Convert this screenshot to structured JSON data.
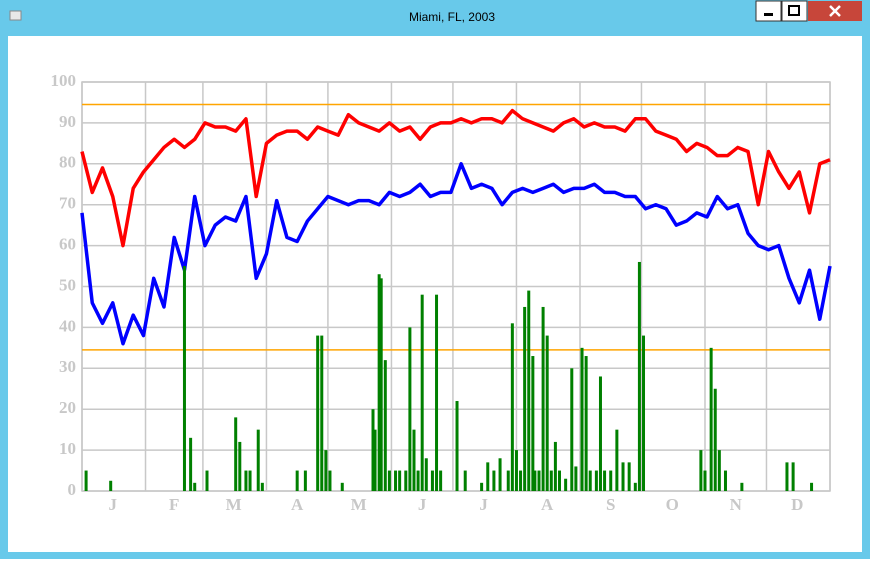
{
  "window": {
    "title": "Miami, FL, 2003"
  },
  "chart_data": {
    "type": "line",
    "xlim": [
      0,
      365
    ],
    "xgrid": [
      0,
      31,
      59,
      90,
      120,
      151,
      181,
      212,
      243,
      273,
      304,
      334,
      365
    ],
    "xticks": [
      {
        "value": 15,
        "label": "J"
      },
      {
        "value": 45,
        "label": "F"
      },
      {
        "value": 74,
        "label": "M"
      },
      {
        "value": 105,
        "label": "A"
      },
      {
        "value": 135,
        "label": "M"
      },
      {
        "value": 166,
        "label": "J"
      },
      {
        "value": 196,
        "label": "J"
      },
      {
        "value": 227,
        "label": "A"
      },
      {
        "value": 258,
        "label": "S"
      },
      {
        "value": 288,
        "label": "O"
      },
      {
        "value": 319,
        "label": "N"
      },
      {
        "value": 349,
        "label": "D"
      }
    ],
    "ylim": [
      0,
      100
    ],
    "yticks": [
      0,
      10,
      20,
      30,
      40,
      50,
      60,
      70,
      80,
      90,
      100
    ],
    "grid": true,
    "reference_lines": {
      "values": [
        94.5,
        34.5
      ],
      "color": "#ffa500"
    },
    "series": [
      {
        "kind": "line",
        "color": "#ff0000",
        "x": [
          0,
          5,
          10,
          15,
          20,
          25,
          30,
          35,
          40,
          45,
          50,
          55,
          60,
          65,
          70,
          75,
          80,
          85,
          90,
          95,
          100,
          105,
          110,
          115,
          120,
          125,
          130,
          135,
          140,
          145,
          150,
          155,
          160,
          165,
          170,
          175,
          180,
          185,
          190,
          195,
          200,
          205,
          210,
          215,
          220,
          225,
          230,
          235,
          240,
          245,
          250,
          255,
          260,
          265,
          270,
          275,
          280,
          285,
          290,
          295,
          300,
          305,
          310,
          315,
          320,
          325,
          330,
          335,
          340,
          345,
          350,
          355,
          360,
          365
        ],
        "values": [
          83,
          73,
          79,
          72,
          60,
          74,
          78,
          81,
          84,
          86,
          84,
          86,
          90,
          89,
          89,
          88,
          91,
          72,
          85,
          87,
          88,
          88,
          86,
          89,
          88,
          87,
          92,
          90,
          89,
          88,
          90,
          88,
          89,
          86,
          89,
          90,
          90,
          91,
          90,
          91,
          91,
          90,
          93,
          91,
          90,
          89,
          88,
          90,
          91,
          89,
          90,
          89,
          89,
          88,
          91,
          91,
          88,
          87,
          86,
          83,
          85,
          84,
          82,
          82,
          84,
          83,
          70,
          83,
          78,
          74,
          78,
          68,
          80,
          81
        ]
      },
      {
        "kind": "line",
        "color": "#0000ff",
        "x": [
          0,
          5,
          10,
          15,
          20,
          25,
          30,
          35,
          40,
          45,
          50,
          55,
          60,
          65,
          70,
          75,
          80,
          85,
          90,
          95,
          100,
          105,
          110,
          115,
          120,
          125,
          130,
          135,
          140,
          145,
          150,
          155,
          160,
          165,
          170,
          175,
          180,
          185,
          190,
          195,
          200,
          205,
          210,
          215,
          220,
          225,
          230,
          235,
          240,
          245,
          250,
          255,
          260,
          265,
          270,
          275,
          280,
          285,
          290,
          295,
          300,
          305,
          310,
          315,
          320,
          325,
          330,
          335,
          340,
          345,
          350,
          355,
          360,
          365
        ],
        "values": [
          68,
          46,
          41,
          46,
          36,
          43,
          38,
          52,
          45,
          62,
          54,
          72,
          60,
          65,
          67,
          66,
          72,
          52,
          58,
          71,
          62,
          61,
          66,
          69,
          72,
          71,
          70,
          71,
          71,
          70,
          73,
          72,
          73,
          75,
          72,
          73,
          73,
          80,
          74,
          75,
          74,
          70,
          73,
          74,
          73,
          74,
          75,
          73,
          74,
          74,
          75,
          73,
          73,
          72,
          72,
          69,
          70,
          69,
          65,
          66,
          68,
          67,
          72,
          69,
          70,
          63,
          60,
          59,
          60,
          52,
          46,
          54,
          42,
          55
        ]
      },
      {
        "kind": "bar",
        "color": "#008000",
        "x": [
          2,
          14,
          50,
          53,
          55,
          61,
          75,
          77,
          80,
          82,
          86,
          88,
          105,
          109,
          115,
          117,
          119,
          121,
          127,
          142,
          143,
          145,
          146,
          148,
          150,
          153,
          155,
          158,
          160,
          162,
          164,
          166,
          168,
          171,
          173,
          175,
          183,
          187,
          195,
          198,
          201,
          204,
          208,
          210,
          212,
          214,
          216,
          218,
          220,
          221,
          223,
          225,
          227,
          229,
          231,
          233,
          236,
          239,
          241,
          244,
          246,
          248,
          251,
          253,
          255,
          258,
          261,
          264,
          267,
          270,
          272,
          274,
          302,
          304,
          307,
          309,
          311,
          314,
          322,
          344,
          347,
          356
        ],
        "values": [
          5,
          2.5,
          55,
          13,
          2,
          5,
          18,
          12,
          5,
          5,
          15,
          2,
          5,
          5,
          38,
          38,
          10,
          5,
          2,
          20,
          15,
          53,
          52,
          32,
          5,
          5,
          5,
          5,
          40,
          15,
          5,
          48,
          8,
          5,
          48,
          5,
          22,
          5,
          2,
          7,
          5,
          8,
          5,
          41,
          10,
          5,
          45,
          49,
          33,
          5,
          5,
          45,
          38,
          5,
          12,
          5,
          3,
          30,
          6,
          35,
          33,
          5,
          5,
          28,
          5,
          5,
          15,
          7,
          7,
          2,
          56,
          38,
          10,
          5,
          35,
          25,
          10,
          5,
          2,
          7,
          7,
          2
        ]
      }
    ]
  }
}
